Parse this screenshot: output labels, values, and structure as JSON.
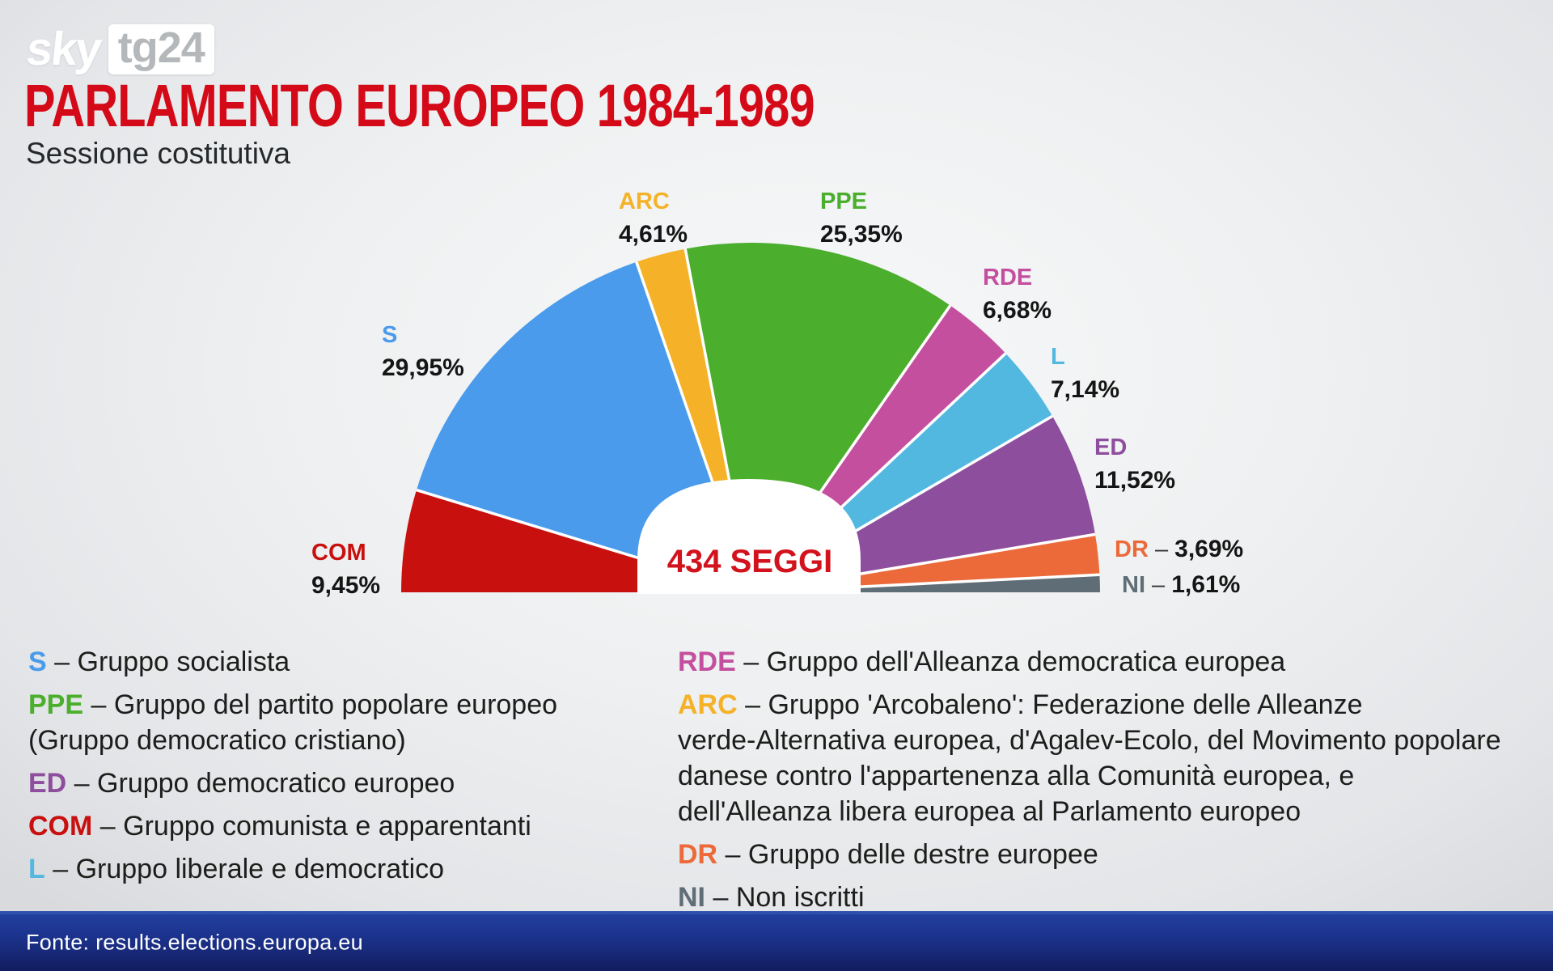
{
  "brand": {
    "sky": "sky",
    "tg24": "tg24"
  },
  "header": {
    "title": "PARLAMENTO EUROPEO 1984-1989",
    "subtitle": "Sessione costitutiva"
  },
  "chart_data": {
    "type": "pie",
    "shape": "hemicycle",
    "title": "Parlamento europeo 1984-1989 - Sessione costitutiva",
    "total_label": "434 SEGGI",
    "unit": "percent of seats",
    "start": "left",
    "sweep": "clockwise",
    "segments": [
      {
        "code": "COM",
        "value": 9.45,
        "label": "9,45%",
        "color": "#c8100f"
      },
      {
        "code": "S",
        "value": 29.95,
        "label": "29,95%",
        "color": "#4a9beb"
      },
      {
        "code": "ARC",
        "value": 4.61,
        "label": "4,61%",
        "color": "#f5b228"
      },
      {
        "code": "PPE",
        "value": 25.35,
        "label": "25,35%",
        "color": "#4bae2d"
      },
      {
        "code": "RDE",
        "value": 6.68,
        "label": "6,68%",
        "color": "#c44f9e"
      },
      {
        "code": "L",
        "value": 7.14,
        "label": "7,14%",
        "color": "#53b8e0"
      },
      {
        "code": "ED",
        "value": 11.52,
        "label": "11,52%",
        "color": "#8e4e9e"
      },
      {
        "code": "DR",
        "value": 3.69,
        "label": "3,69%",
        "color": "#ec6a3a"
      },
      {
        "code": "NI",
        "value": 1.61,
        "label": "1,61%",
        "color": "#5f6d77"
      }
    ]
  },
  "legend": {
    "separator": "–",
    "left": [
      {
        "code": "S",
        "color": "#4a9beb",
        "text": "Gruppo socialista"
      },
      {
        "code": "PPE",
        "color": "#4bae2d",
        "text": "Gruppo del partito popolare europeo\n(Gruppo democratico cristiano)"
      },
      {
        "code": "ED",
        "color": "#8e4e9e",
        "text": "Gruppo democratico europeo"
      },
      {
        "code": "COM",
        "color": "#c8100f",
        "text": "Gruppo comunista e apparentanti"
      },
      {
        "code": "L",
        "color": "#53b8e0",
        "text": "Gruppo liberale e democratico"
      }
    ],
    "right": [
      {
        "code": "RDE",
        "color": "#c44f9e",
        "text": "Gruppo dell'Alleanza democratica europea"
      },
      {
        "code": "ARC",
        "color": "#f5b228",
        "text": "Gruppo 'Arcobaleno': Federazione delle Alleanze\nverde-Alternativa europea, d'Agalev-Ecolo, del Movimento popolare\ndanese contro l'appartenenza alla Comunità europea, e\ndell'Alleanza libera europea al Parlamento europeo"
      },
      {
        "code": "DR",
        "color": "#ec6a3a",
        "text": "Gruppo delle destre europee"
      },
      {
        "code": "NI",
        "color": "#5f6d77",
        "text": "Non iscritti"
      }
    ]
  },
  "footer": {
    "source": "Fonte: results.elections.europa.eu"
  }
}
